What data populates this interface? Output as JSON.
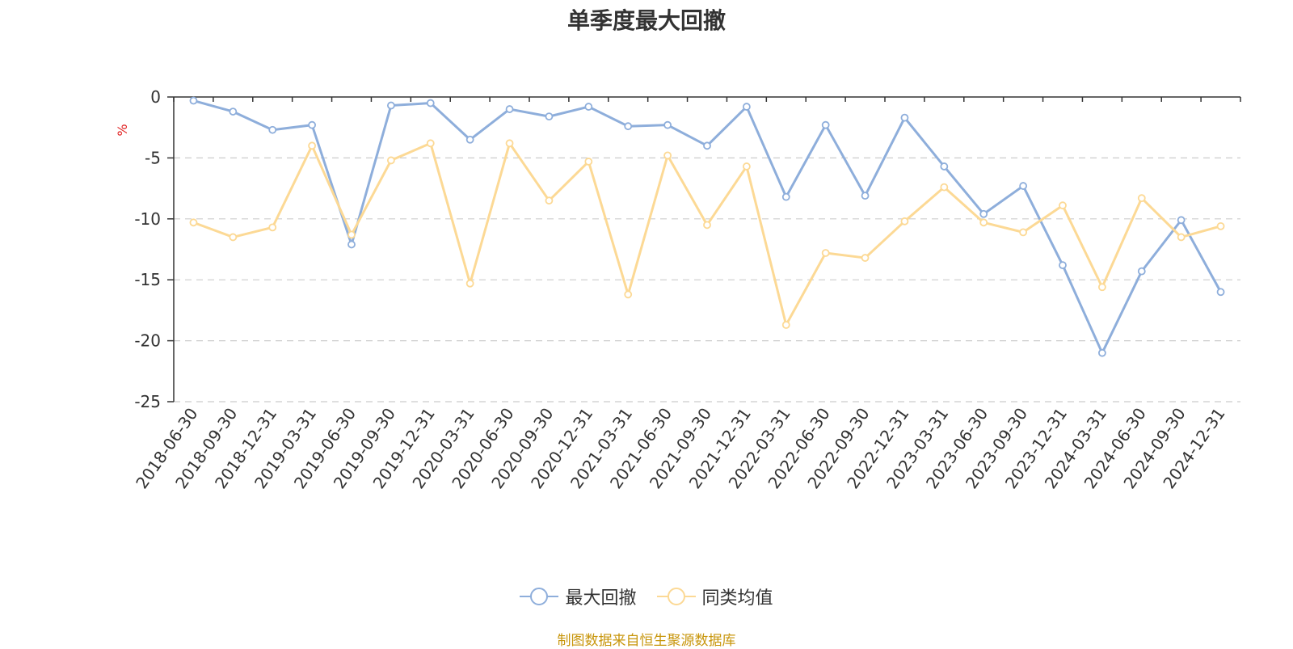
{
  "chart_data": {
    "type": "line",
    "title": "单季度最大回撤",
    "ylabel": "%",
    "xlabel": "",
    "ylim": [
      -25,
      0
    ],
    "yticks": [
      0,
      -5,
      -10,
      -15,
      -20,
      -25
    ],
    "ytick_labels": [
      "0",
      "-5",
      "-10",
      "-15",
      "-20",
      "-25"
    ],
    "grid": true,
    "legend_position": "bottom-center",
    "categories": [
      "2018-06-30",
      "2018-09-30",
      "2018-12-31",
      "2019-03-31",
      "2019-06-30",
      "2019-09-30",
      "2019-12-31",
      "2020-03-31",
      "2020-06-30",
      "2020-09-30",
      "2020-12-31",
      "2021-03-31",
      "2021-06-30",
      "2021-09-30",
      "2021-12-31",
      "2022-03-31",
      "2022-06-30",
      "2022-09-30",
      "2022-12-31",
      "2023-03-31",
      "2023-06-30",
      "2023-09-30",
      "2023-12-31",
      "2024-03-31",
      "2024-06-30",
      "2024-09-30",
      "2024-12-31"
    ],
    "series": [
      {
        "name": "最大回撤",
        "color": "#8eaedb",
        "values": [
          -0.3,
          -1.2,
          -2.7,
          -2.3,
          -12.1,
          -0.7,
          -0.5,
          -3.5,
          -1.0,
          -1.6,
          -0.8,
          -2.4,
          -2.3,
          -4.0,
          -0.8,
          -8.2,
          -2.3,
          -8.1,
          -1.7,
          -5.7,
          -9.6,
          -7.3,
          -13.8,
          -21.0,
          -14.3,
          -10.1,
          -16.0
        ]
      },
      {
        "name": "同类均值",
        "color": "#fcd995",
        "values": [
          -10.3,
          -11.5,
          -10.7,
          -4.0,
          -11.3,
          -5.2,
          -3.8,
          -15.3,
          -3.8,
          -8.5,
          -5.3,
          -16.2,
          -4.8,
          -10.5,
          -5.7,
          -18.7,
          -12.8,
          -13.2,
          -10.2,
          -7.4,
          -10.3,
          -11.1,
          -8.9,
          -15.6,
          -8.3,
          -11.5,
          -10.6
        ]
      }
    ]
  },
  "legend": {
    "items": [
      "最大回撤",
      "同类均值"
    ]
  },
  "source": "制图数据来自恒生聚源数据库"
}
